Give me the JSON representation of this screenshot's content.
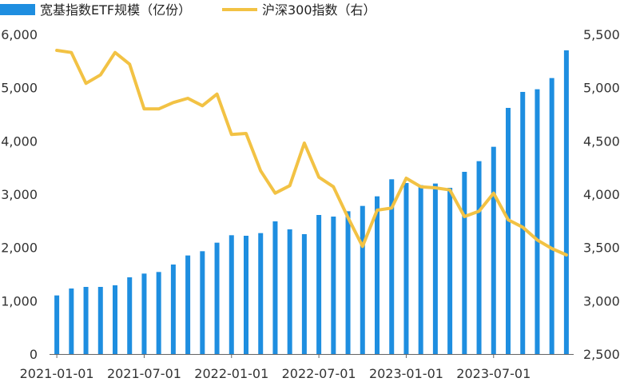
{
  "chart_data": {
    "type": "bar+line",
    "legend": [
      {
        "name": "宽基指数ETF规模（亿份）",
        "kind": "bar",
        "color": "#1e8ee0"
      },
      {
        "name": "沪深300指数（右）",
        "kind": "line",
        "color": "#f2c244"
      }
    ],
    "left_axis": {
      "min": 0,
      "max": 6000,
      "ticks": [
        "0",
        "1,000",
        "2,000",
        "3,000",
        "4,000",
        "5,000",
        "6,000"
      ],
      "tick_values": [
        0,
        1000,
        2000,
        3000,
        4000,
        5000,
        6000
      ]
    },
    "right_axis": {
      "min": 2500,
      "max": 5500,
      "ticks": [
        "2,500",
        "3,000",
        "3,500",
        "4,000",
        "4,500",
        "5,000",
        "5,500"
      ],
      "tick_values": [
        2500,
        3000,
        3500,
        4000,
        4500,
        5000,
        5500
      ]
    },
    "x_tick_labels": [
      "2021-01-01",
      "2021-07-01",
      "2022-01-01",
      "2022-07-01",
      "2023-01-01",
      "2023-07-01"
    ],
    "x_tick_indices": [
      0,
      6,
      12,
      18,
      24,
      30
    ],
    "series": [
      {
        "name": "宽基指数ETF规模（亿份）",
        "type": "bar",
        "values": [
          1100,
          1230,
          1260,
          1260,
          1290,
          1440,
          1510,
          1540,
          1680,
          1850,
          1930,
          2090,
          2230,
          2220,
          2270,
          2490,
          2340,
          2250,
          2610,
          2580,
          2680,
          2780,
          2960,
          3280,
          3210,
          3170,
          3200,
          3120,
          3420,
          3620,
          3890,
          4620,
          4920,
          4970,
          5180,
          5700
        ]
      },
      {
        "name": "沪深300指数（右）",
        "type": "line",
        "values": [
          5350,
          5330,
          5040,
          5120,
          5330,
          5220,
          4800,
          4800,
          4860,
          4900,
          4830,
          4940,
          4560,
          4570,
          4220,
          4010,
          4080,
          4480,
          4160,
          4070,
          3780,
          3510,
          3850,
          3870,
          4150,
          4070,
          4060,
          4040,
          3790,
          3840,
          4010,
          3760,
          3690,
          3570,
          3490,
          3430
        ]
      }
    ]
  }
}
